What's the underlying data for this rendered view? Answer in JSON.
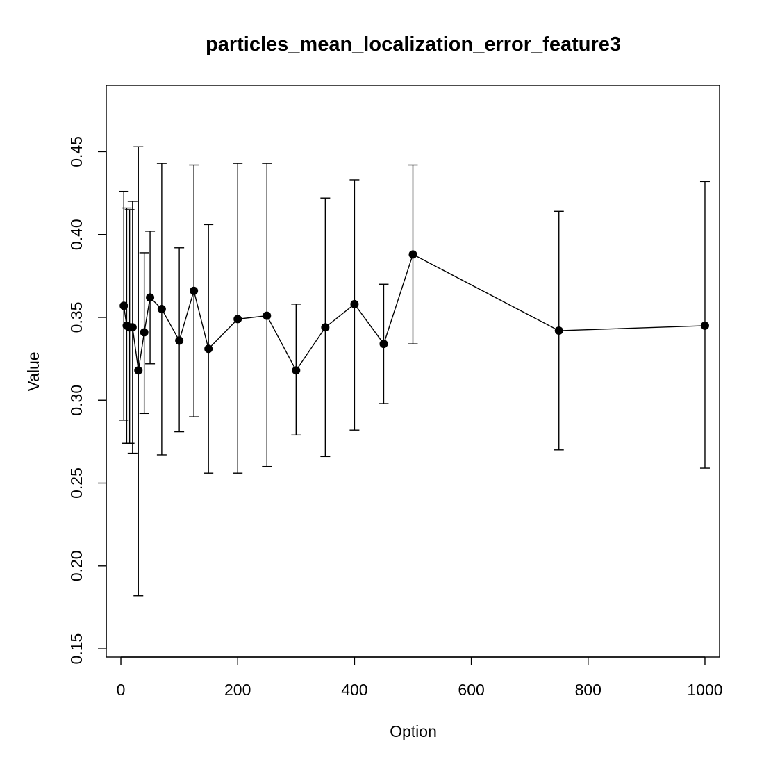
{
  "chart_data": {
    "type": "line",
    "title": "particles_mean_localization_error_feature3",
    "xlabel": "Option",
    "ylabel": "Value",
    "xlim": [
      -25,
      1025
    ],
    "ylim": [
      0.145,
      0.49
    ],
    "x_ticks": [
      0,
      200,
      400,
      600,
      800,
      1000
    ],
    "y_ticks": [
      0.15,
      0.2,
      0.25,
      0.3,
      0.35,
      0.4,
      0.45
    ],
    "x_tick_labels": [
      "0",
      "200",
      "400",
      "600",
      "800",
      "1000"
    ],
    "y_tick_labels": [
      "0.15",
      "0.20",
      "0.25",
      "0.30",
      "0.35",
      "0.40",
      "0.45"
    ],
    "grid": false,
    "series": [
      {
        "x": [
          5,
          10,
          15,
          20,
          30,
          40,
          50,
          70,
          100,
          125,
          150,
          200,
          250,
          300,
          350,
          400,
          450,
          500,
          750,
          1000
        ],
        "y": [
          0.357,
          0.345,
          0.344,
          0.344,
          0.318,
          0.341,
          0.362,
          0.355,
          0.336,
          0.366,
          0.331,
          0.349,
          0.351,
          0.318,
          0.344,
          0.358,
          0.334,
          0.388,
          0.342,
          0.345
        ],
        "lower": [
          0.288,
          0.274,
          0.274,
          0.268,
          0.182,
          0.292,
          0.322,
          0.267,
          0.281,
          0.29,
          0.256,
          0.256,
          0.26,
          0.279,
          0.266,
          0.282,
          0.298,
          0.334,
          0.27,
          0.259
        ],
        "upper": [
          0.426,
          0.416,
          0.415,
          0.42,
          0.453,
          0.389,
          0.402,
          0.443,
          0.392,
          0.442,
          0.406,
          0.443,
          0.443,
          0.358,
          0.422,
          0.433,
          0.37,
          0.442,
          0.414,
          0.432
        ]
      }
    ]
  }
}
